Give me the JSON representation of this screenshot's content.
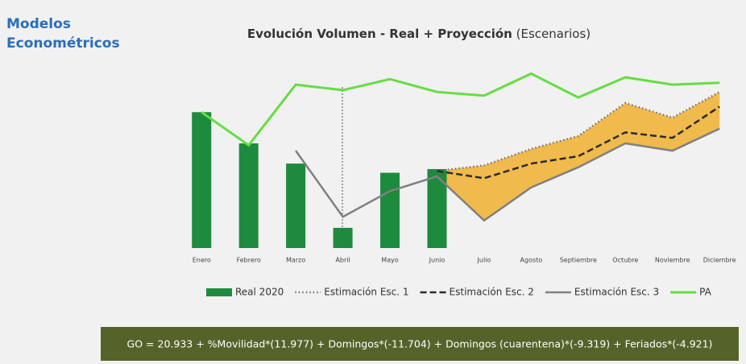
{
  "header": "Modelos Econométricos",
  "chart_data": {
    "type": "combo",
    "title": "Evolución Volumen - Real + Proyección",
    "subtitle": "(Escenarios)",
    "categories": [
      "Enero",
      "Febrero",
      "Marzo",
      "Abril",
      "Mayo",
      "Junio",
      "Julio",
      "Agosto",
      "Septiembre",
      "Octubre",
      "Noviembre",
      "Diciembre"
    ],
    "ylim": [
      0,
      100
    ],
    "series": [
      {
        "name": "Real 2020",
        "type": "bar",
        "color": "#1e8a3e",
        "values": [
          74,
          57,
          46,
          11,
          41,
          43,
          null,
          null,
          null,
          null,
          null,
          null
        ]
      },
      {
        "name": "Estimación Esc. 1",
        "type": "line",
        "style": "dotted",
        "color": "#777777",
        "values": [
          null,
          null,
          null,
          null,
          null,
          42,
          45,
          54,
          61,
          79,
          71,
          85
        ]
      },
      {
        "name": "Estimación Esc. 2",
        "type": "line",
        "style": "dashed",
        "color": "#2b2b2b",
        "values": [
          null,
          null,
          null,
          null,
          null,
          42,
          38,
          46,
          50,
          63,
          60,
          77
        ]
      },
      {
        "name": "Estimación Esc. 3",
        "type": "line",
        "style": "solid",
        "color": "#808080",
        "values": [
          null,
          null,
          53,
          17,
          31,
          39,
          15,
          33,
          44,
          57,
          53,
          65
        ]
      },
      {
        "name": "PA",
        "type": "line",
        "style": "solid",
        "color": "#66dd44",
        "values": [
          74,
          56,
          89,
          86,
          92,
          85,
          83,
          95,
          82,
          93,
          89,
          90
        ]
      }
    ],
    "band_color": "#f0b030"
  },
  "footer": "GO = 20.933 + %Movilidad*(11.977) + Domingos*(-11.704) + Domingos (cuarentena)*(-9.319) + Feriados*(-4.921)"
}
